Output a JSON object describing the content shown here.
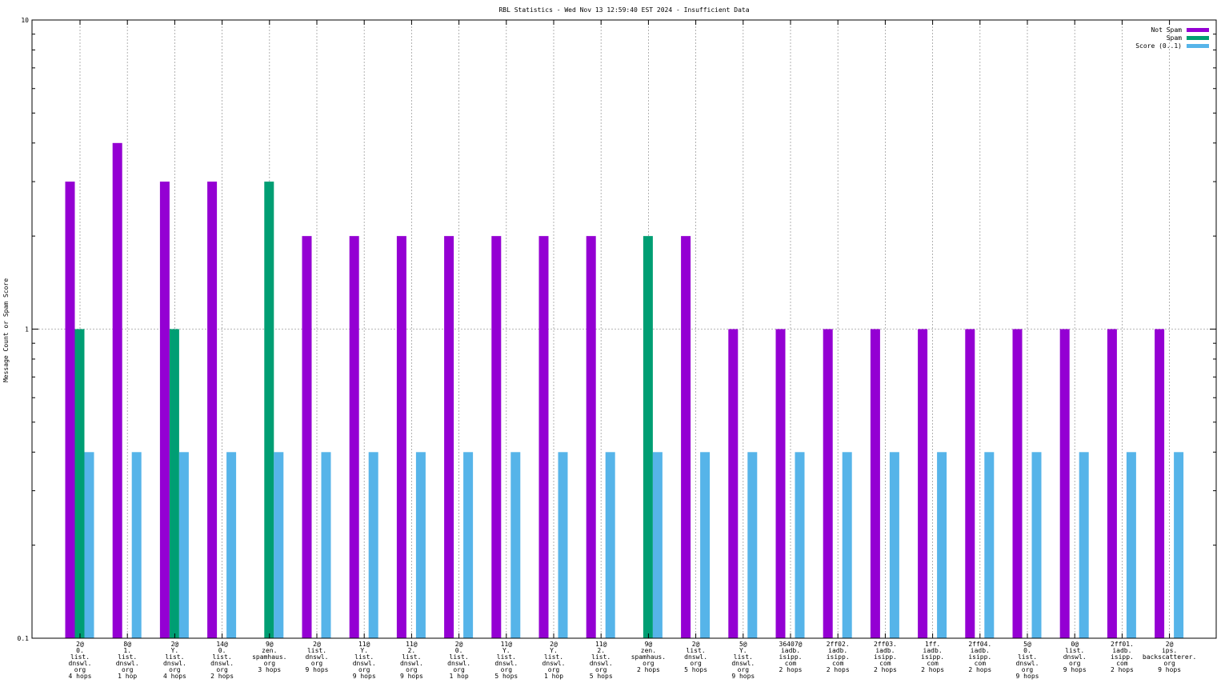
{
  "chart_data": {
    "type": "bar",
    "title": "RBL Statistics - Wed Nov 13 12:59:40 EST 2024 - Insufficient Data",
    "xlabel": "",
    "ylabel": "Message Count or Spam Score",
    "y_scale": "log",
    "ylim": [
      0.1,
      10
    ],
    "y_ticks": [
      {
        "value": 0.1,
        "label": "0.1"
      },
      {
        "value": 1,
        "label": "1"
      },
      {
        "value": 10,
        "label": "10"
      }
    ],
    "grid": true,
    "legend_position": "top-right",
    "categories": [
      [
        "2@",
        "0.",
        "list.",
        "dnswl.",
        "org",
        "4 hops"
      ],
      [
        "8@",
        "1.",
        "list.",
        "dnswl.",
        "org",
        "1 hop"
      ],
      [
        "2@",
        "Y.",
        "list.",
        "dnswl.",
        "org",
        "4 hops"
      ],
      [
        "14@",
        "0.",
        "list.",
        "dnswl.",
        "org",
        "2 hops"
      ],
      [
        "9@",
        "zen.",
        "spamhaus.",
        "org",
        "3 hops"
      ],
      [
        "2@",
        "list.",
        "dnswl.",
        "org",
        "9 hops"
      ],
      [
        "11@",
        "Y.",
        "list.",
        "dnswl.",
        "org",
        "9 hops"
      ],
      [
        "11@",
        "2.",
        "list.",
        "dnswl.",
        "org",
        "9 hops"
      ],
      [
        "2@",
        "0.",
        "list.",
        "dnswl.",
        "org",
        "1 hop"
      ],
      [
        "11@",
        "Y.",
        "list.",
        "dnswl.",
        "org",
        "5 hops"
      ],
      [
        "2@",
        "Y.",
        "list.",
        "dnswl.",
        "org",
        "1 hop"
      ],
      [
        "11@",
        "2.",
        "list.",
        "dnswl.",
        "org",
        "5 hops"
      ],
      [
        "9@",
        "zen.",
        "spamhaus.",
        "org",
        "2 hops"
      ],
      [
        "2@",
        "list.",
        "dnswl.",
        "org",
        "5 hops"
      ],
      [
        "5@",
        "Y.",
        "list.",
        "dnswl.",
        "org",
        "9 hops"
      ],
      [
        "36407@",
        "iadb.",
        "isipp.",
        "com",
        "2 hops"
      ],
      [
        "2ff02.",
        "iadb.",
        "isipp.",
        "com",
        "2 hops"
      ],
      [
        "2ff03.",
        "iadb.",
        "isipp.",
        "com",
        "2 hops"
      ],
      [
        "1ff.",
        "iadb.",
        "isipp.",
        "com",
        "2 hops"
      ],
      [
        "2ff04.",
        "iadb.",
        "isipp.",
        "com",
        "2 hops"
      ],
      [
        "5@",
        "0.",
        "list.",
        "dnswl.",
        "org",
        "9 hops"
      ],
      [
        "0@",
        "list.",
        "dnswl.",
        "org",
        "9 hops"
      ],
      [
        "2ff01.",
        "iadb.",
        "isipp.",
        "com",
        "2 hops"
      ],
      [
        "2@",
        "ips.",
        "backscatterer.",
        "org",
        "9 hops"
      ]
    ],
    "series": [
      {
        "name": "Not Spam",
        "color": "#9400d3",
        "values": [
          3,
          4,
          3,
          3,
          null,
          2,
          2,
          2,
          2,
          2,
          2,
          2,
          null,
          2,
          1,
          1,
          1,
          1,
          1,
          1,
          1,
          1,
          1,
          1
        ]
      },
      {
        "name": "Spam",
        "color": "#009e73",
        "values": [
          1,
          null,
          1,
          null,
          3,
          null,
          null,
          null,
          null,
          null,
          null,
          null,
          2,
          null,
          null,
          null,
          null,
          null,
          null,
          null,
          null,
          null,
          null,
          null
        ]
      },
      {
        "name": "Score (0..1)",
        "color": "#56b4e9",
        "values": [
          0.4,
          0.4,
          0.4,
          0.4,
          0.4,
          0.4,
          0.4,
          0.4,
          0.4,
          0.4,
          0.4,
          0.4,
          0.4,
          0.4,
          0.4,
          0.4,
          0.4,
          0.4,
          0.4,
          0.4,
          0.4,
          0.4,
          0.4,
          0.4
        ]
      }
    ]
  }
}
